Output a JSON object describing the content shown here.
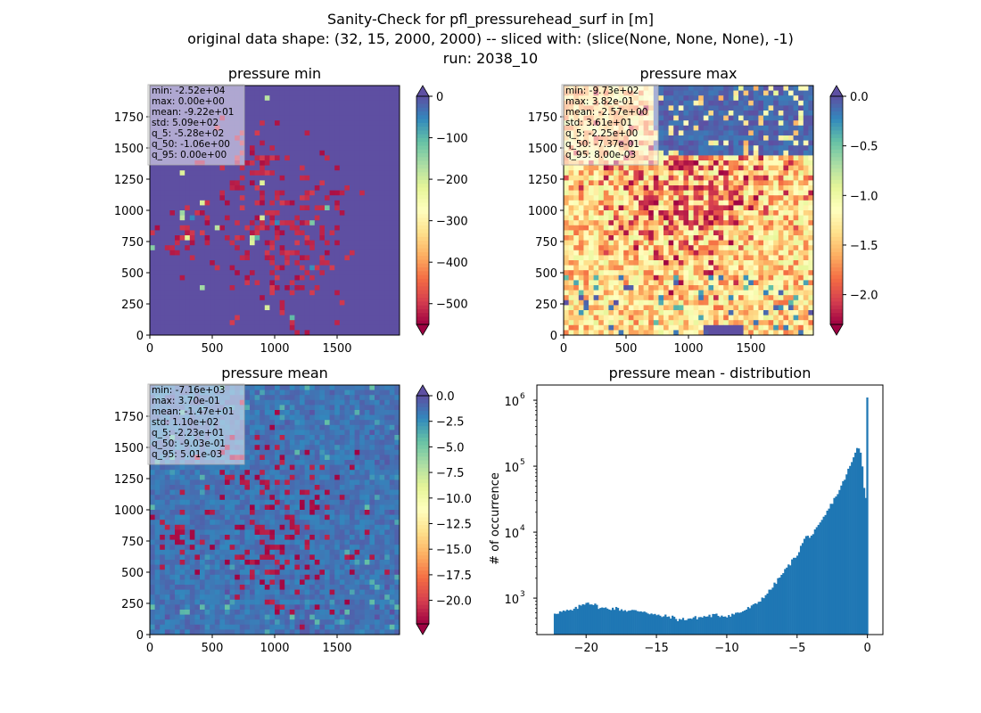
{
  "suptitle": [
    "Sanity-Check for pfl_pressurehead_surf in [m]",
    "original data shape: (32, 15, 2000, 2000) -- sliced with: (slice(None, None, None), -1)",
    "run: 2038_10"
  ],
  "chart_data": [
    {
      "type": "heatmap",
      "title": "pressure min",
      "colormap": "Spectral",
      "extend": "both",
      "xlim": [
        0,
        2000
      ],
      "ylim": [
        0,
        2000
      ],
      "xticks": [
        0,
        500,
        1000,
        1500
      ],
      "yticks": [
        0,
        250,
        500,
        750,
        1000,
        1250,
        1500,
        1750
      ],
      "clim": [
        -550,
        0
      ],
      "colorbar_ticks": [
        0,
        -100,
        -200,
        -300,
        -400,
        -500
      ],
      "colorbar_tick_labels": [
        "0",
        "−100",
        "−200",
        "−300",
        "−400",
        "−500"
      ],
      "stats": [
        "min: -2.52e+04",
        "max: 0.00e+00",
        "mean: -9.22e+01",
        "std: 5.09e+02",
        "q_5: -5.28e+02",
        "q_50: -1.06e+00",
        "q_95: 0.00e+00"
      ]
    },
    {
      "type": "heatmap",
      "title": "pressure max",
      "colormap": "Spectral",
      "extend": "both",
      "xlim": [
        0,
        2000
      ],
      "ylim": [
        0,
        2000
      ],
      "xticks": [
        0,
        500,
        1000,
        1500
      ],
      "yticks": [
        0,
        250,
        500,
        750,
        1000,
        1250,
        1500,
        1750
      ],
      "clim": [
        -2.3,
        0.0
      ],
      "colorbar_ticks": [
        0.0,
        -0.5,
        -1.0,
        -1.5,
        -2.0
      ],
      "colorbar_tick_labels": [
        "0.0",
        "−0.5",
        "−1.0",
        "−1.5",
        "−2.0"
      ],
      "stats": [
        "min: -9.73e+02",
        "max: 3.82e-01",
        "mean: -2.57e+00",
        "std: 3.61e+01",
        "q_5: -2.25e+00",
        "q_50: -7.37e-01",
        "q_95: 8.00e-03"
      ]
    },
    {
      "type": "heatmap",
      "title": "pressure mean",
      "colormap": "Spectral",
      "extend": "both",
      "xlim": [
        0,
        2000
      ],
      "ylim": [
        0,
        2000
      ],
      "xticks": [
        0,
        500,
        1000,
        1500
      ],
      "yticks": [
        0,
        250,
        500,
        750,
        1000,
        1250,
        1500,
        1750
      ],
      "clim": [
        -22.3,
        0.0
      ],
      "colorbar_ticks": [
        0.0,
        -2.5,
        -5.0,
        -7.5,
        -10.0,
        -12.5,
        -15.0,
        -17.5,
        -20.0
      ],
      "colorbar_tick_labels": [
        "0.0",
        "−2.5",
        "−5.0",
        "−7.5",
        "−10.0",
        "−12.5",
        "−15.0",
        "−17.5",
        "−20.0"
      ],
      "stats": [
        "min: -7.16e+03",
        "max: 3.70e-01",
        "mean: -1.47e+01",
        "std: 1.10e+02",
        "q_5: -2.23e+01",
        "q_50: -9.03e-01",
        "q_95: 5.01e-03"
      ]
    },
    {
      "type": "bar",
      "title": "pressure mean - distribution",
      "xlabel": "",
      "ylabel": "# of occurrence",
      "yscale": "log",
      "xlim": [
        -23.5,
        1.1
      ],
      "ylim": [
        280,
        1700000
      ],
      "xticks": [
        -20,
        -15,
        -10,
        -5,
        0
      ],
      "xtick_labels": [
        "−20",
        "−15",
        "−10",
        "−5",
        "0"
      ],
      "yticks": [
        1000,
        10000,
        100000,
        1000000
      ],
      "ytick_labels": [
        "10",
        "10",
        "10",
        "10"
      ],
      "ytick_exponents": [
        "3",
        "4",
        "5",
        "6"
      ],
      "color": "#1f77b4",
      "x": [
        -22.3,
        -21.0,
        -20.0,
        -19.5,
        -19.0,
        -18.0,
        -17.0,
        -16.0,
        -15.0,
        -14.0,
        -13.5,
        -12.0,
        -11.0,
        -10.0,
        -9.0,
        -8.0,
        -7.0,
        -6.0,
        -5.0,
        -4.5,
        -4.0,
        -3.5,
        -3.0,
        -2.5,
        -2.0,
        -1.5,
        -1.0,
        -0.75,
        -0.5,
        -0.3,
        -0.15,
        0.0
      ],
      "values": [
        600,
        650,
        880,
        800,
        700,
        700,
        640,
        640,
        540,
        520,
        470,
        510,
        550,
        540,
        620,
        800,
        1300,
        2500,
        4800,
        8300,
        9000,
        12500,
        19000,
        30000,
        45000,
        80000,
        140000,
        200000,
        160000,
        50000,
        30000,
        1100000
      ]
    }
  ]
}
